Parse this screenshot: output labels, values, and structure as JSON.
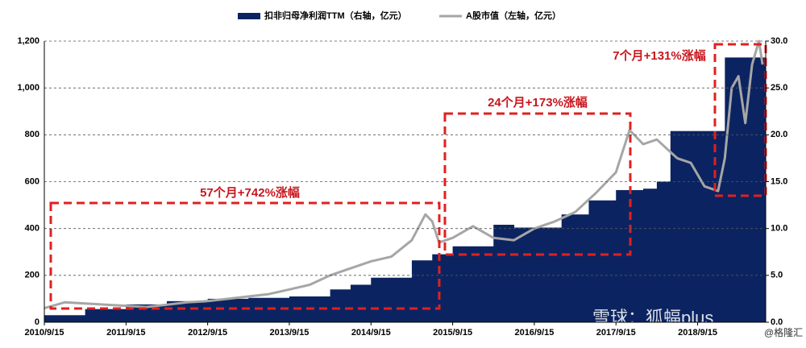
{
  "chart_data": {
    "type": "step-area-line",
    "series": [
      {
        "name": "扣非归母净利润TTM（右轴，亿元）",
        "color": "#0b2461",
        "axis": "y2",
        "type": "step-area",
        "x": [
          "2010/9/15",
          "2011/3/15",
          "2011/9/15",
          "2012/3/15",
          "2012/9/15",
          "2013/3/15",
          "2013/9/15",
          "2014/3/15",
          "2014/6/15",
          "2014/9/15",
          "2015/3/15",
          "2015/6/15",
          "2015/9/15",
          "2016/3/15",
          "2016/6/15",
          "2017/1/15",
          "2017/5/15",
          "2017/9/15",
          "2018/1/15",
          "2018/3/15",
          "2018/5/15",
          "2019/1/15"
        ],
        "values": [
          0.75,
          1.4,
          1.9,
          2.25,
          2.5,
          2.6,
          2.75,
          3.5,
          4.0,
          4.75,
          6.6,
          7.25,
          8.1,
          10.4,
          10.1,
          11.5,
          13,
          14.1,
          14.25,
          15,
          20.4,
          28.25
        ]
      },
      {
        "name": "A股市值（左轴，亿元）",
        "color": "#a6a6a6",
        "axis": "y",
        "type": "line",
        "x": [
          "2010/9/15",
          "2010/12/15",
          "2011/3/15",
          "2011/6/15",
          "2011/9/15",
          "2011/12/15",
          "2012/3/15",
          "2012/6/15",
          "2012/9/15",
          "2012/12/15",
          "2013/3/15",
          "2013/6/15",
          "2013/9/15",
          "2013/12/15",
          "2014/3/15",
          "2014/6/15",
          "2014/9/15",
          "2014/12/15",
          "2015/3/15",
          "2015/5/15",
          "2015/6/15",
          "2015/7/15",
          "2015/9/15",
          "2015/12/15",
          "2016/3/15",
          "2016/6/15",
          "2016/9/15",
          "2016/12/15",
          "2017/3/15",
          "2017/6/15",
          "2017/9/15",
          "2017/11/15",
          "2018/1/15",
          "2018/3/15",
          "2018/6/15",
          "2018/8/15",
          "2018/10/15",
          "2018/12/15",
          "2019/1/15",
          "2019/2/15",
          "2019/3/15",
          "2019/4/15",
          "2019/5/15",
          "2019/6/15",
          "2019/7/1"
        ],
        "values": [
          60,
          85,
          80,
          75,
          70,
          65,
          75,
          85,
          90,
          100,
          110,
          120,
          140,
          160,
          200,
          230,
          260,
          280,
          350,
          460,
          430,
          340,
          360,
          410,
          360,
          350,
          400,
          430,
          470,
          550,
          640,
          820,
          760,
          780,
          700,
          680,
          580,
          560,
          700,
          1000,
          1050,
          850,
          1100,
          1200,
          1100
        ]
      }
    ],
    "xlim": [
      "2010/9/15",
      "2019/7/15"
    ],
    "xticks": [
      "2010/9/15",
      "2011/9/15",
      "2012/9/15",
      "2013/9/15",
      "2014/9/15",
      "2015/9/15",
      "2016/9/15",
      "2017/9/15",
      "2018/9/15"
    ],
    "ylim": [
      0,
      1200
    ],
    "yticks": [
      0,
      200,
      400,
      600,
      800,
      {
        "value": 1000,
        "label": "1,000"
      },
      {
        "value": 1200,
        "label": "1,200"
      }
    ],
    "y2lim": [
      0,
      30
    ],
    "y2ticks": [
      {
        "value": 0,
        "label": "0.0"
      },
      {
        "value": 5,
        "label": "5.0"
      },
      {
        "value": 10,
        "label": "10.0"
      },
      {
        "value": 15,
        "label": "15.0"
      },
      {
        "value": 20,
        "label": "20.0"
      },
      {
        "value": 25,
        "label": "25.0"
      },
      {
        "value": 30,
        "label": "30.0"
      }
    ],
    "grid": true,
    "annotations": [
      "57个月+742%涨幅",
      "24个月+173%涨幅",
      "7个月+131%涨幅"
    ],
    "watermark": [
      "雪球：狐蝠plus",
      "@格隆汇"
    ]
  }
}
